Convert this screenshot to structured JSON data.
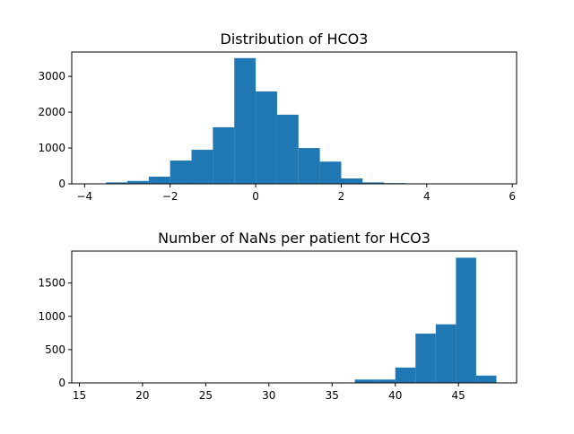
{
  "chart_data": [
    {
      "type": "bar",
      "title": "Distribution of HCO3",
      "xlabel": "",
      "ylabel": "",
      "xlim": [
        -4.3,
        6.1
      ],
      "ylim": [
        0,
        3680
      ],
      "xticks": [
        -4,
        -2,
        0,
        2,
        4,
        6
      ],
      "yticks": [
        0,
        1000,
        2000,
        3000
      ],
      "grid": false,
      "bar_color": "#1f77b4",
      "bins": [
        {
          "x0": -4.0,
          "x1": -3.5,
          "value": 3
        },
        {
          "x0": -3.5,
          "x1": -3.0,
          "value": 40
        },
        {
          "x0": -3.0,
          "x1": -2.5,
          "value": 80
        },
        {
          "x0": -2.5,
          "x1": -2.0,
          "value": 200
        },
        {
          "x0": -2.0,
          "x1": -1.5,
          "value": 650
        },
        {
          "x0": -1.5,
          "x1": -1.0,
          "value": 950
        },
        {
          "x0": -1.0,
          "x1": -0.5,
          "value": 1580
        },
        {
          "x0": -0.5,
          "x1": 0.0,
          "value": 3510
        },
        {
          "x0": 0.0,
          "x1": 0.5,
          "value": 2580
        },
        {
          "x0": 0.5,
          "x1": 1.0,
          "value": 1930
        },
        {
          "x0": 1.0,
          "x1": 1.5,
          "value": 1000
        },
        {
          "x0": 1.5,
          "x1": 2.0,
          "value": 620
        },
        {
          "x0": 2.0,
          "x1": 2.5,
          "value": 150
        },
        {
          "x0": 2.5,
          "x1": 3.0,
          "value": 40
        },
        {
          "x0": 3.0,
          "x1": 3.5,
          "value": 20
        },
        {
          "x0": 3.5,
          "x1": 4.0,
          "value": 10
        },
        {
          "x0": 4.0,
          "x1": 4.5,
          "value": 3
        },
        {
          "x0": 4.5,
          "x1": 5.0,
          "value": 2
        },
        {
          "x0": 5.0,
          "x1": 5.5,
          "value": 1
        }
      ]
    },
    {
      "type": "bar",
      "title": "Number of NaNs per patient for HCO3",
      "xlabel": "",
      "ylabel": "",
      "xlim": [
        14.4,
        49.6
      ],
      "ylim": [
        0,
        1980
      ],
      "xticks": [
        15,
        20,
        25,
        30,
        35,
        40,
        45
      ],
      "yticks": [
        0,
        500,
        1000,
        1500
      ],
      "grid": false,
      "bar_color": "#1f77b4",
      "bins": [
        {
          "x0": 16.0,
          "x1": 17.6,
          "value": 1
        },
        {
          "x0": 32.0,
          "x1": 33.6,
          "value": 3
        },
        {
          "x0": 33.6,
          "x1": 35.2,
          "value": 5
        },
        {
          "x0": 36.8,
          "x1": 38.4,
          "value": 50
        },
        {
          "x0": 38.4,
          "x1": 40.0,
          "value": 50
        },
        {
          "x0": 40.0,
          "x1": 41.6,
          "value": 230
        },
        {
          "x0": 41.6,
          "x1": 43.2,
          "value": 740
        },
        {
          "x0": 43.2,
          "x1": 44.8,
          "value": 880
        },
        {
          "x0": 44.8,
          "x1": 46.4,
          "value": 1880
        },
        {
          "x0": 46.4,
          "x1": 48.0,
          "value": 110
        }
      ]
    }
  ]
}
